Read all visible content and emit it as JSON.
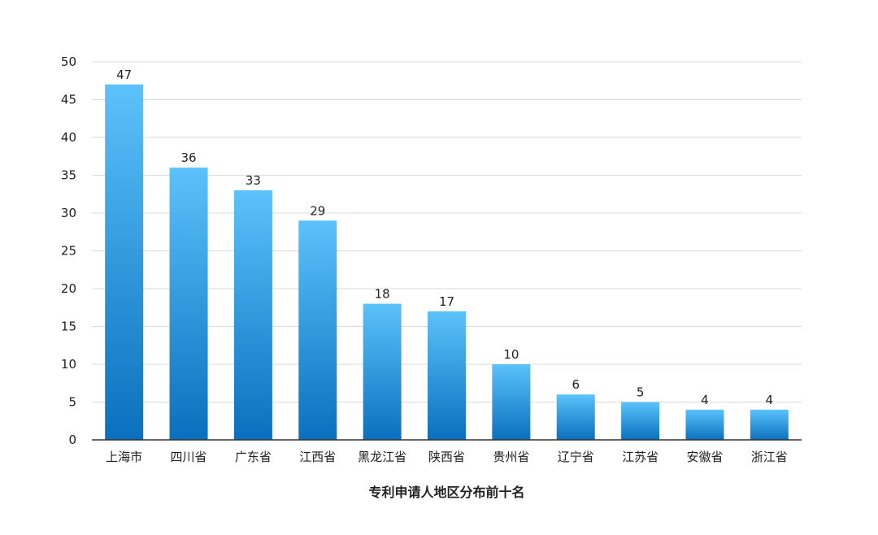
{
  "chart_data": {
    "type": "bar",
    "title": "",
    "xlabel": "专利申请人地区分布前十名",
    "ylabel": "",
    "ylim": [
      0,
      50
    ],
    "yticks": [
      0,
      5,
      10,
      15,
      20,
      25,
      30,
      35,
      40,
      45,
      50
    ],
    "grid": true,
    "legend": "none",
    "categories": [
      "上海市",
      "四川省",
      "广东省",
      "江西省",
      "黑龙江省",
      "陕西省",
      "贵州省",
      "辽宁省",
      "江苏省",
      "安徽省",
      "浙江省"
    ],
    "values": [
      47,
      36,
      33,
      29,
      18,
      17,
      10,
      6,
      5,
      4,
      4
    ],
    "colors": {
      "bar_top": "#5bc2fb",
      "bar_bottom": "#0a70be"
    }
  }
}
